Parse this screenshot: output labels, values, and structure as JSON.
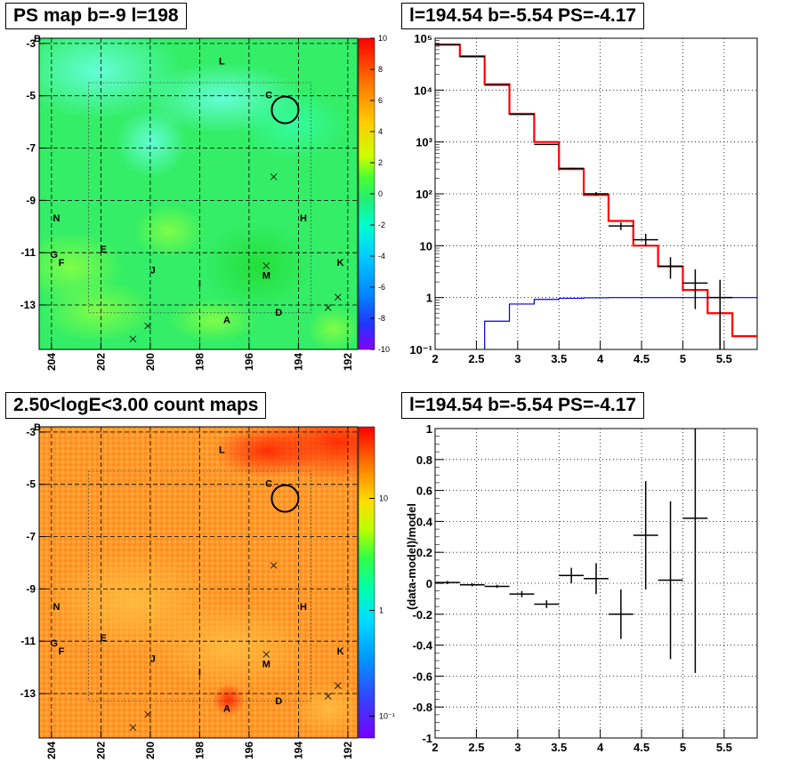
{
  "panels": {
    "top_left_title": "PS map b=-9 l=198",
    "top_right_title": "l=194.54 b=-5.54 PS=-4.17",
    "bottom_left_title": "2.50<logE<3.00 count maps",
    "bottom_right_title": "l=194.54 b=-5.54 PS=-4.17"
  },
  "maps": {
    "x_ticks": [
      "204",
      "202",
      "200",
      "198",
      "196",
      "194",
      "192"
    ],
    "y_ticks": [
      "-3",
      "-5",
      "-7",
      "-9",
      "-11",
      "-13"
    ],
    "y_extra_label": "B",
    "sources": [
      {
        "name": "L",
        "l": 197.1,
        "b": -3.8
      },
      {
        "name": "C",
        "l": 195.2,
        "b": -5.1
      },
      {
        "name": "N",
        "l": 203.8,
        "b": -9.8
      },
      {
        "name": "H",
        "l": 193.8,
        "b": -9.8
      },
      {
        "name": "G",
        "l": 203.9,
        "b": -11.2
      },
      {
        "name": "F",
        "l": 203.6,
        "b": -11.5
      },
      {
        "name": "E",
        "l": 201.9,
        "b": -11.0
      },
      {
        "name": "J",
        "l": 199.9,
        "b": -11.8
      },
      {
        "name": "I",
        "l": 198.0,
        "b": -12.3
      },
      {
        "name": "M",
        "l": 195.3,
        "b": -12.0
      },
      {
        "name": "K",
        "l": 192.3,
        "b": -11.5
      },
      {
        "name": "A",
        "l": 196.9,
        "b": -13.7
      },
      {
        "name": "D",
        "l": 194.8,
        "b": -13.4
      }
    ],
    "crosses": [
      {
        "l": 195.0,
        "b": -8.1
      },
      {
        "l": 195.3,
        "b": -11.5
      },
      {
        "l": 192.4,
        "b": -12.7
      },
      {
        "l": 192.8,
        "b": -13.1
      },
      {
        "l": 200.1,
        "b": -13.8
      },
      {
        "l": 200.7,
        "b": -14.3
      }
    ],
    "circle": {
      "l": 194.54,
      "b": -5.54
    },
    "ps_colorbar_ticks": [
      "10",
      "8",
      "6",
      "4",
      "2",
      "0",
      "-2",
      "-4",
      "-6",
      "-8",
      "-10"
    ],
    "counts_colorbar_ticks": [
      "10",
      "1",
      "10⁻¹"
    ],
    "colors": {
      "ps_base": "#33ee66",
      "counts_base": "#ff9a2a",
      "frame": "#000000"
    }
  },
  "chart_data": [
    {
      "type": "line",
      "title": "l=194.54 b=-5.54 PS=-4.17",
      "xlim": [
        2,
        5.9
      ],
      "ylim": [
        0.1,
        100000
      ],
      "log_y": true,
      "x_ticks": [
        "2",
        "2.5",
        "3",
        "3.5",
        "4",
        "4.5",
        "5",
        "5.5"
      ],
      "y_ticks": [
        "10⁵",
        "10⁴",
        "10³",
        "10²",
        "10",
        "1",
        "10⁻¹"
      ],
      "grid": true,
      "series": [
        {
          "kind": "step",
          "color": "#ff0000",
          "edges": [
            2.0,
            2.3,
            2.6,
            2.9,
            3.2,
            3.5,
            3.8,
            4.1,
            4.4,
            4.7,
            5.0,
            5.3,
            5.6,
            5.9
          ],
          "values": [
            75000,
            45000,
            13000,
            3500,
            1000,
            300,
            95,
            30,
            10,
            4,
            1.4,
            0.5,
            0.18
          ]
        },
        {
          "kind": "step",
          "color": "#0000cc",
          "edges": [
            2.6,
            2.9,
            3.2,
            3.5,
            3.8,
            4.1,
            4.4,
            4.7,
            5.0,
            5.3,
            5.6,
            5.9
          ],
          "values": [
            0.35,
            0.75,
            0.92,
            0.97,
            0.99,
            1.0,
            1.0,
            1.0,
            1.0,
            1.0,
            1.0
          ]
        },
        {
          "kind": "errorbar",
          "color": "#000000",
          "points": [
            {
              "x": 2.15,
              "y": 76000,
              "lo": 75000,
              "hi": 77000
            },
            {
              "x": 2.45,
              "y": 44000,
              "lo": 43000,
              "hi": 45000
            },
            {
              "x": 2.75,
              "y": 12500,
              "lo": 12300,
              "hi": 12700
            },
            {
              "x": 3.05,
              "y": 3400,
              "lo": 3300,
              "hi": 3500
            },
            {
              "x": 3.35,
              "y": 900,
              "lo": 880,
              "hi": 920
            },
            {
              "x": 3.65,
              "y": 310,
              "lo": 300,
              "hi": 320
            },
            {
              "x": 3.95,
              "y": 100,
              "lo": 92,
              "hi": 108
            },
            {
              "x": 4.25,
              "y": 24,
              "lo": 20,
              "hi": 28
            },
            {
              "x": 4.55,
              "y": 13,
              "lo": 10,
              "hi": 17
            },
            {
              "x": 4.85,
              "y": 4,
              "lo": 2.3,
              "hi": 6
            },
            {
              "x": 5.15,
              "y": 1.9,
              "lo": 0.6,
              "hi": 3.5
            },
            {
              "x": 5.45,
              "y": 1.0,
              "lo": 0.1,
              "hi": 2.2
            }
          ]
        }
      ]
    },
    {
      "type": "scatter",
      "title": "l=194.54 b=-5.54 PS=-4.17",
      "ylabel": "(data-model)/model",
      "xlim": [
        2,
        5.9
      ],
      "ylim": [
        -1,
        1
      ],
      "x_ticks": [
        "2",
        "2.5",
        "3",
        "3.5",
        "4",
        "4.5",
        "5",
        "5.5"
      ],
      "y_ticks": [
        "1",
        "0.8",
        "0.6",
        "0.4",
        "0.2",
        "0",
        "-0.2",
        "-0.4",
        "-0.6",
        "-0.8",
        "-1"
      ],
      "grid": true,
      "points": [
        {
          "x": 2.15,
          "y": 0.005,
          "err": 0.01
        },
        {
          "x": 2.45,
          "y": -0.01,
          "err": 0.01
        },
        {
          "x": 2.75,
          "y": -0.02,
          "err": 0.01
        },
        {
          "x": 3.05,
          "y": -0.07,
          "err": 0.02
        },
        {
          "x": 3.35,
          "y": -0.135,
          "err": 0.025
        },
        {
          "x": 3.65,
          "y": 0.05,
          "err": 0.05
        },
        {
          "x": 3.95,
          "y": 0.03,
          "err": 0.1
        },
        {
          "x": 4.25,
          "y": -0.2,
          "err": 0.16
        },
        {
          "x": 4.55,
          "y": 0.31,
          "err": 0.35
        },
        {
          "x": 4.85,
          "y": 0.02,
          "err": 0.51
        },
        {
          "x": 5.15,
          "y": 0.42,
          "err": 1.0
        }
      ]
    }
  ]
}
